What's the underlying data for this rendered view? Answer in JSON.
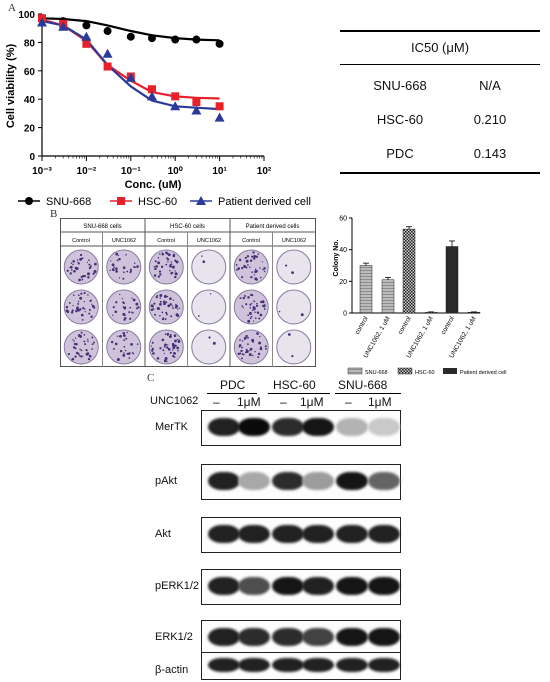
{
  "panel_a": {
    "letter": "A",
    "chart_data": {
      "type": "scatter",
      "xlabel": "Conc. (uM)",
      "ylabel": "Cell viability (%)",
      "x_scale": "log",
      "xlim": [
        0.001,
        100
      ],
      "ylim": [
        0,
        100
      ],
      "x_ticks": [
        "10⁻³",
        "10⁻²",
        "10⁻¹",
        "10⁰",
        "10¹",
        "10²"
      ],
      "y_ticks": [
        "0",
        "20",
        "40",
        "60",
        "80",
        "100"
      ],
      "legend_position": "bottom",
      "x": [
        0.001,
        0.003,
        0.01,
        0.03,
        0.1,
        0.3,
        1,
        3,
        10
      ],
      "series": [
        {
          "name": "SNU-668",
          "color": "#000000",
          "marker": "circle",
          "values": [
            97,
            95,
            92,
            88,
            84,
            83,
            82,
            82,
            79
          ],
          "fit": [
            97,
            96.5,
            95,
            92,
            88,
            85,
            83,
            82,
            81.5
          ]
        },
        {
          "name": "HSC-60",
          "color": "#e8202a",
          "marker": "square",
          "values": [
            97,
            93,
            79,
            63,
            56,
            47,
            42,
            38,
            35
          ],
          "fit": [
            96,
            92,
            81,
            64,
            53,
            45,
            42,
            41,
            40.5
          ]
        },
        {
          "name": "Patient derived cell",
          "color": "#2b3a9a",
          "marker": "triangle",
          "values": [
            94,
            91,
            84,
            72,
            55,
            42,
            35,
            32,
            27
          ],
          "fit": [
            95,
            92,
            82,
            64,
            49,
            39,
            35,
            34,
            33
          ]
        }
      ]
    },
    "ic50_table": {
      "header": "IC50 (μM)",
      "rows": [
        {
          "cell": "SNU-668",
          "value": "N/A"
        },
        {
          "cell": "HSC-60",
          "value": "0.210"
        },
        {
          "cell": "PDC",
          "value": "0.143"
        }
      ]
    }
  },
  "panel_b": {
    "letter": "B",
    "group_headers": [
      "SNU-668 cells",
      "HSC-60 cells",
      "Patient derived cells"
    ],
    "sub_headers": [
      "Control",
      "UNC1062",
      "Control",
      "UNC1062",
      "Control",
      "UNC1062"
    ],
    "chart_data": {
      "type": "bar",
      "ylabel": "Colony No.",
      "ylim": [
        0,
        60
      ],
      "y_ticks": [
        "0",
        "20",
        "40",
        "60"
      ],
      "categories": [
        "control",
        "UNC1062, 1 uM",
        "control",
        "UNC1062, 1 uM",
        "control",
        "UNC1062, 1 uM"
      ],
      "values": [
        30,
        21,
        53,
        0.5,
        42,
        0.5
      ],
      "errors": [
        1.5,
        1.5,
        1.5,
        0.2,
        3.5,
        0.2
      ],
      "groups": [
        "SNU-668",
        "SNU-668",
        "HSC-60",
        "HSC-60",
        "Patient derived cell",
        "Patient derived cell"
      ],
      "legend": [
        "SNU-668",
        "HSC-60",
        "Patient derived cell"
      ],
      "legend_position": "bottom"
    }
  },
  "panel_c": {
    "letter": "C",
    "cell_lines": [
      "PDC",
      "HSC-60",
      "SNU-668"
    ],
    "treatment_label": "UNC1062",
    "lane_labels": [
      "–",
      "1μM",
      "–",
      "1μM",
      "–",
      "1μM"
    ],
    "blots": [
      {
        "name": "MerTK",
        "intensity": [
          0.9,
          1.0,
          0.85,
          0.95,
          0.25,
          0.15
        ]
      },
      {
        "name": "pAkt",
        "intensity": [
          0.9,
          0.3,
          0.85,
          0.35,
          0.95,
          0.6
        ]
      },
      {
        "name": "Akt",
        "intensity": [
          0.9,
          0.9,
          0.9,
          0.9,
          0.9,
          0.9
        ]
      },
      {
        "name": "pERK1/2",
        "intensity": [
          0.9,
          0.7,
          0.95,
          0.9,
          0.95,
          0.95
        ]
      },
      {
        "name": "ERK1/2",
        "intensity": [
          0.9,
          0.85,
          0.85,
          0.75,
          0.95,
          0.95
        ]
      },
      {
        "name": "β-actin",
        "intensity": [
          0.9,
          0.9,
          0.9,
          0.9,
          0.9,
          0.9
        ]
      }
    ]
  }
}
